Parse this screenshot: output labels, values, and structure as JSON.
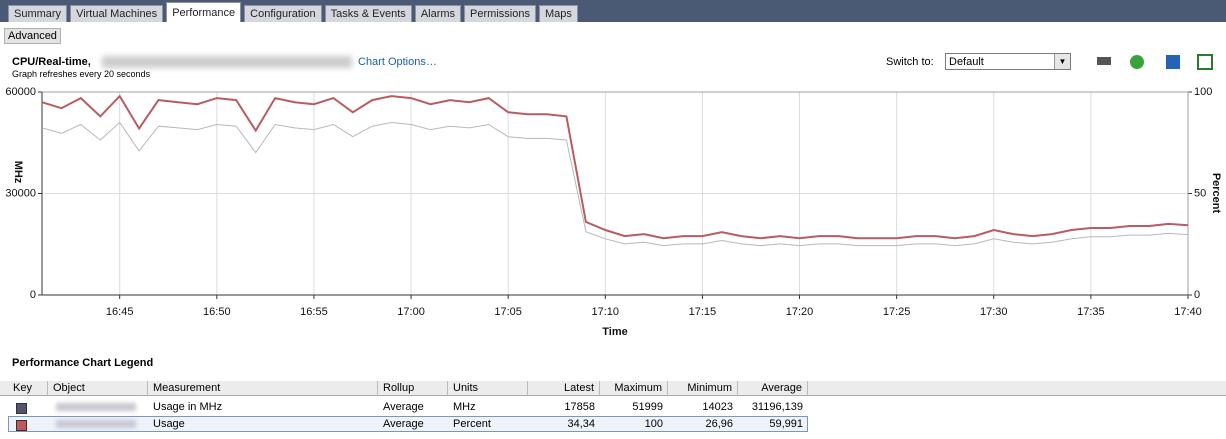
{
  "tabs": [
    "Summary",
    "Virtual Machines",
    "Performance",
    "Configuration",
    "Tasks & Events",
    "Alarms",
    "Permissions",
    "Maps"
  ],
  "active_tab": 2,
  "advanced_button": "Advanced",
  "header": {
    "title": "CPU/Real-time,",
    "chart_options": "Chart Options…",
    "refresh_note": "Graph refreshes every 20 seconds",
    "switch_label": "Switch to:",
    "switch_value": "Default"
  },
  "chart_data": {
    "type": "line",
    "xlabel": "Time",
    "ylabel": "MHz",
    "y2label": "Percent",
    "grid": true,
    "categories": [
      null,
      null,
      null,
      null,
      "16:45",
      null,
      null,
      null,
      null,
      "16:50",
      null,
      null,
      null,
      null,
      "16:55",
      null,
      null,
      null,
      null,
      "17:00",
      null,
      null,
      null,
      null,
      "17:05",
      null,
      null,
      null,
      null,
      "17:10",
      null,
      null,
      null,
      null,
      "17:15",
      null,
      null,
      null,
      null,
      "17:20",
      null,
      null,
      null,
      null,
      "17:25",
      null,
      null,
      null,
      null,
      "17:30",
      null,
      null,
      null,
      null,
      "17:35",
      null,
      null,
      null,
      null,
      "17:40"
    ],
    "ylim": [
      0,
      60000
    ],
    "yticks": [
      0,
      30000,
      60000
    ],
    "y2lim": [
      0,
      100
    ],
    "y2ticks": [
      0,
      50,
      100
    ],
    "series": [
      {
        "name": "Usage in MHz",
        "color": "#b8b8b8",
        "values": [
          49400,
          47800,
          50400,
          45800,
          51000,
          42600,
          49900,
          49400,
          48900,
          50400,
          49900,
          42100,
          50400,
          49400,
          48900,
          50400,
          46800,
          49900,
          51000,
          50400,
          48900,
          49900,
          49400,
          50400,
          46800,
          46300,
          46300,
          45800,
          18700,
          16600,
          15100,
          15600,
          14600,
          15100,
          15100,
          16100,
          15100,
          14600,
          15100,
          14600,
          15100,
          15100,
          14600,
          14600,
          14600,
          15100,
          15100,
          14600,
          15100,
          16600,
          15600,
          15100,
          15600,
          16600,
          17200,
          17200,
          17700,
          17700,
          18200,
          17858
        ]
      },
      {
        "name": "Usage",
        "color": "#b85c62",
        "axis": "y2",
        "values": [
          95,
          92,
          97,
          88,
          98,
          82,
          96,
          95,
          94,
          97,
          96,
          81,
          97,
          95,
          94,
          97,
          90,
          96,
          98,
          97,
          94,
          96,
          95,
          97,
          90,
          89,
          89,
          88,
          36,
          32,
          29,
          30,
          28,
          29,
          29,
          31,
          29,
          28,
          29,
          28,
          29,
          29,
          28,
          28,
          28,
          29,
          29,
          28,
          29,
          32,
          30,
          29,
          30,
          32,
          33,
          33,
          34,
          34,
          35,
          34.34
        ]
      }
    ]
  },
  "legend_table": {
    "title": "Performance Chart Legend",
    "columns": [
      "Key",
      "Object",
      "Measurement",
      "Rollup",
      "Units",
      "Latest",
      "Maximum",
      "Minimum",
      "Average"
    ],
    "key_colors": [
      "#55556a",
      "#c0585e"
    ],
    "rows": [
      [
        "Usage in MHz",
        "Average",
        "MHz",
        "17858",
        "51999",
        "14023",
        "31196,139"
      ],
      [
        "Usage",
        "Average",
        "Percent",
        "34,34",
        "100",
        "26,96",
        "59,991"
      ]
    ]
  }
}
